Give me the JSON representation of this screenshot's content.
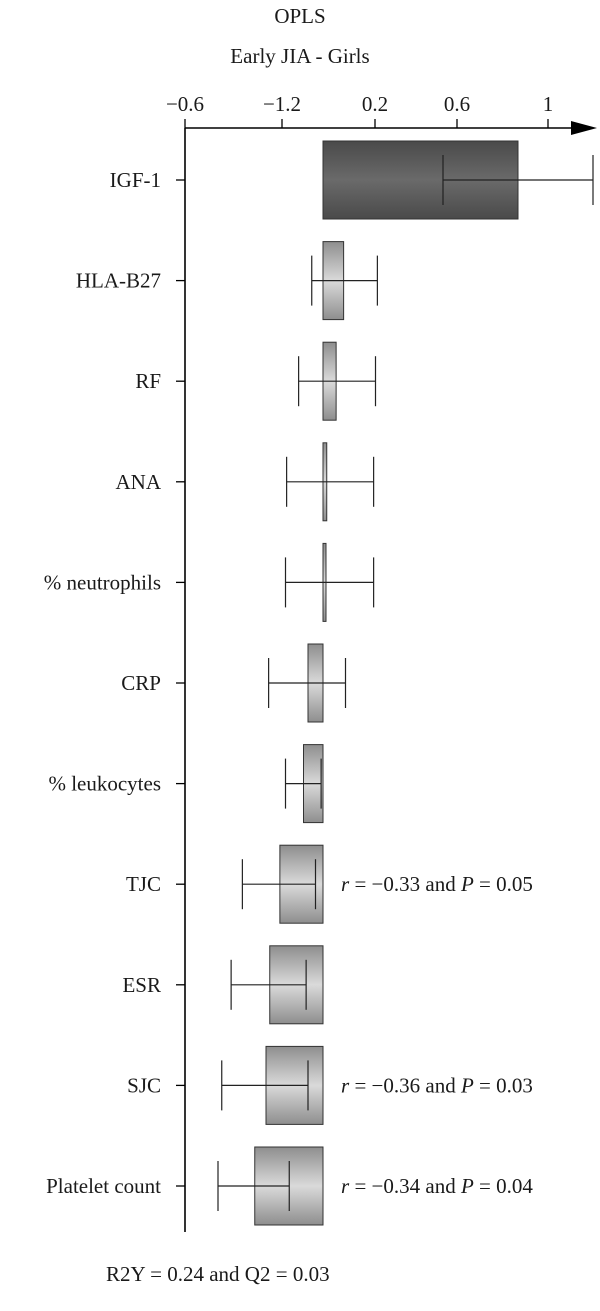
{
  "chart_data": {
    "type": "bar",
    "title": "OPLS",
    "subtitle": "Early JIA - Girls",
    "x_ticks": [
      "−0.6",
      "−1.2",
      "0.2",
      "0.6",
      "1"
    ],
    "categories": [
      "IGF-1",
      "HLA-B27",
      "RF",
      "ANA",
      "% neutrophils",
      "CRP",
      "% leukocytes",
      "TJC",
      "ESR",
      "SJC",
      "Platelet count"
    ],
    "values": [
      0.52,
      0.055,
      0.035,
      0.01,
      0.008,
      -0.04,
      -0.052,
      -0.115,
      -0.142,
      -0.152,
      -0.182
    ],
    "ci_low": [
      0.32,
      -0.03,
      -0.065,
      -0.097,
      -0.1,
      -0.145,
      -0.1,
      -0.215,
      -0.245,
      -0.27,
      -0.28
    ],
    "ci_high": [
      0.72,
      0.145,
      0.14,
      0.135,
      0.135,
      0.06,
      -0.005,
      -0.02,
      -0.045,
      -0.04,
      -0.09
    ],
    "xlim": [
      -0.37,
      0.72
    ],
    "annotations": [
      {
        "row": "TJC",
        "text": "r = −0.33 and P = 0.05"
      },
      {
        "row": "SJC",
        "text": "r = −0.36 and P = 0.03"
      },
      {
        "row": "Platelet count",
        "text": "r = −0.34 and P = 0.04"
      }
    ],
    "colors": {
      "top_bar": "#5a5a5a",
      "bar_light": "#d0d0d0",
      "bar_mid": "#8a8a8a",
      "axis": "#000000"
    }
  },
  "footer": "R2Y = 0.24 and Q2 = 0.03"
}
